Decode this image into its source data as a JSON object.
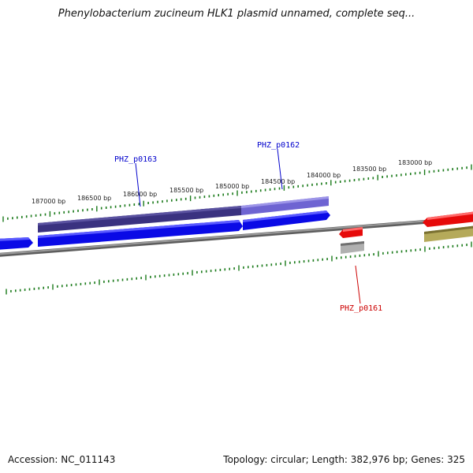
{
  "title": "Phenylobacterium zucineum HLK1 plasmid unnamed, complete seq...",
  "footer": {
    "accession": "Accession: NC_011143",
    "summary": "Topology: circular; Length: 382,976 bp; Genes: 325"
  },
  "ruler": {
    "labels": [
      "187000 bp",
      "186500 bp",
      "186000 bp",
      "185500 bp",
      "185000 bp",
      "184500 bp",
      "184000 bp",
      "183500 bp",
      "183000 bp"
    ]
  },
  "genes": [
    {
      "id": "PHZ_p0163",
      "color": "#0000cc"
    },
    {
      "id": "PHZ_p0162",
      "color": "#0000cc"
    },
    {
      "id": "PHZ_p0161",
      "color": "#cc0000"
    }
  ],
  "colors": {
    "tick": "#1a7a1a",
    "backbone": "#7f7f7f",
    "cds_blue": "#0a0ae6",
    "cds_purple_dark": "#3a3280",
    "cds_purple_light": "#6e64d2",
    "cds_red": "#e60a0a",
    "cds_gray": "#b0b0b0",
    "cds_olive": "#b5aa5a"
  }
}
